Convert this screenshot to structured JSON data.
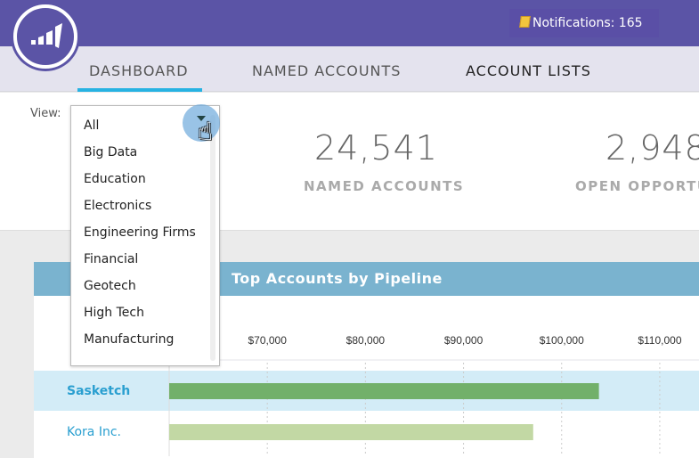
{
  "header": {
    "notifications_label": "Notifications: 165",
    "notification_icon": "note-icon",
    "logo": "marketo-logo"
  },
  "nav": {
    "tabs": [
      {
        "label": "DASHBOARD",
        "active": true
      },
      {
        "label": "NAMED ACCOUNTS"
      },
      {
        "label": "ACCOUNT LISTS"
      }
    ]
  },
  "view": {
    "label": "View:",
    "selected": "All",
    "options": [
      "All",
      "Big Data",
      "Education",
      "Electronics",
      "Engineering Firms",
      "Financial",
      "Geotech",
      "High Tech",
      "Manufacturing"
    ]
  },
  "stats": [
    {
      "value": "24,541",
      "label": "NAMED ACCOUNTS"
    },
    {
      "value": "2,948",
      "label": "OPEN OPPORTU"
    }
  ],
  "panel": {
    "title": "Top Accounts by Pipeline"
  },
  "colors": {
    "header": "#5b54a6",
    "accent": "#27b2e2",
    "panel_header": "#7ab3cf",
    "bar_primary": "#72b06a",
    "bar_secondary": "#c2d8a4",
    "row_highlight": "#d3ecf7"
  },
  "chart_data": {
    "type": "bar",
    "orientation": "horizontal",
    "categories": [
      "Sasketch",
      "Kora Inc."
    ],
    "values": [
      103800,
      97100
    ],
    "tick_labels": [
      "$70,000",
      "$80,000",
      "$90,000",
      "$100,000",
      "$110,000"
    ],
    "ticks": [
      70000,
      80000,
      90000,
      100000,
      110000
    ],
    "xlim": [
      60000,
      114000
    ],
    "grid": true,
    "highlighted": "Sasketch"
  }
}
